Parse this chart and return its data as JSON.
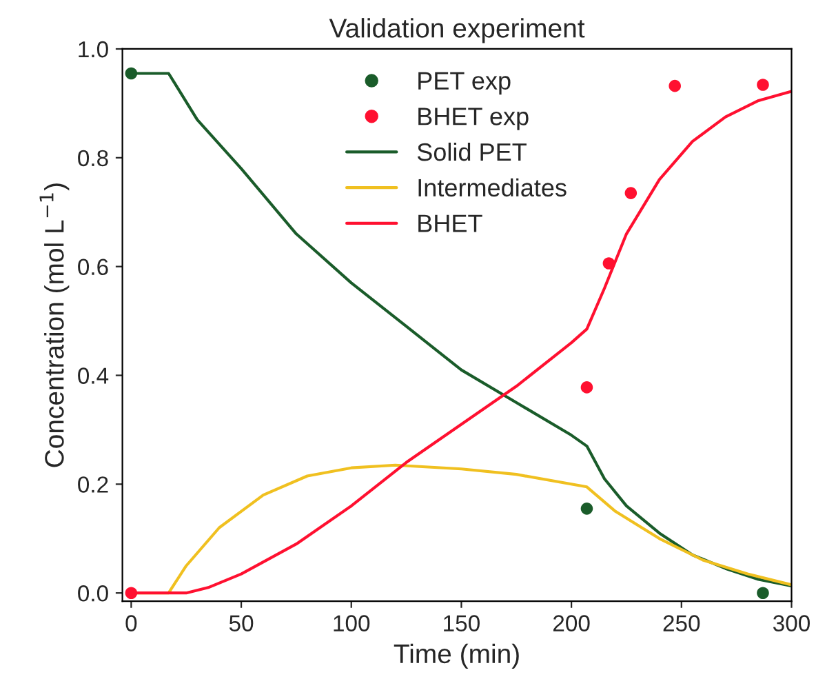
{
  "chart_data": {
    "type": "line",
    "title": "Validation experiment",
    "xlabel": "Time (min)",
    "ylabel": "Concentration (mol L$^{−1}$)",
    "xlim": [
      -4,
      300
    ],
    "xticks": [
      0,
      50,
      100,
      150,
      200,
      250,
      300
    ],
    "ylim": [
      -0.015,
      1.0
    ],
    "yticks": [
      {
        "value": 0,
        "label": "0.0"
      },
      {
        "value": 0.2,
        "label": "0.2"
      },
      {
        "value": 0.4,
        "label": "0.4"
      },
      {
        "value": 0.6,
        "label": "0.6"
      },
      {
        "value": 0.8,
        "label": "0.8"
      },
      {
        "value": 1.0,
        "label": "1.0"
      }
    ],
    "grid": false,
    "legend": "top",
    "line_style": "solid",
    "series": [
      {
        "name": "PET exp",
        "type": "scatter",
        "marker": "circle",
        "color": "#1a5c2a",
        "x": [
          0,
          207,
          287
        ],
        "values": [
          0.955,
          0.155,
          0.0
        ]
      },
      {
        "name": "BHET exp",
        "type": "scatter",
        "marker": "circle",
        "color": "#ff1030",
        "x": [
          0,
          207,
          217,
          227,
          247,
          287
        ],
        "values": [
          0.0,
          0.378,
          0.606,
          0.735,
          0.932,
          0.934
        ]
      },
      {
        "name": "Solid PET",
        "type": "line",
        "color": "#1a5c2a",
        "x": [
          0,
          17,
          30,
          50,
          75,
          100,
          125,
          150,
          175,
          200,
          207,
          215,
          225,
          240,
          255,
          270,
          285,
          300
        ],
        "values": [
          0.955,
          0.955,
          0.87,
          0.78,
          0.66,
          0.57,
          0.49,
          0.41,
          0.35,
          0.29,
          0.27,
          0.21,
          0.16,
          0.11,
          0.07,
          0.045,
          0.025,
          0.013
        ]
      },
      {
        "name": "Intermediates",
        "type": "line",
        "color": "#f0c020",
        "x": [
          0,
          17,
          25,
          40,
          60,
          80,
          100,
          120,
          150,
          175,
          207,
          220,
          240,
          260,
          280,
          300
        ],
        "values": [
          0,
          0,
          0.05,
          0.12,
          0.18,
          0.215,
          0.23,
          0.235,
          0.228,
          0.218,
          0.195,
          0.15,
          0.1,
          0.06,
          0.035,
          0.015
        ]
      },
      {
        "name": "BHET",
        "type": "line",
        "color": "#ff1030",
        "x": [
          0,
          25,
          35,
          50,
          75,
          100,
          125,
          150,
          175,
          200,
          207,
          215,
          225,
          240,
          255,
          270,
          285,
          300
        ],
        "values": [
          0,
          0,
          0.01,
          0.035,
          0.09,
          0.16,
          0.24,
          0.31,
          0.38,
          0.46,
          0.485,
          0.56,
          0.66,
          0.76,
          0.83,
          0.875,
          0.905,
          0.922
        ]
      }
    ]
  }
}
